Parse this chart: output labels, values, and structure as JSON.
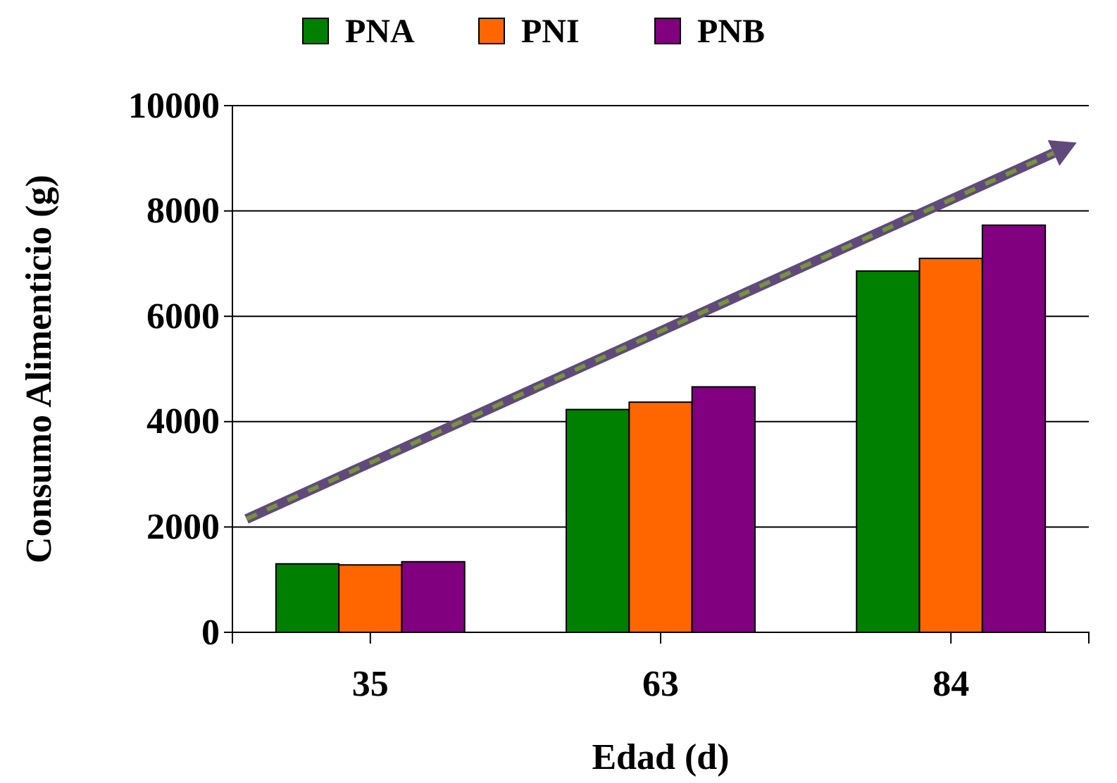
{
  "chart_data": {
    "type": "bar",
    "xlabel": "Edad (d)",
    "ylabel": "Consumo Alimenticio (g)",
    "categories": [
      "35",
      "63",
      "84"
    ],
    "series": [
      {
        "name": "PNA",
        "color": "#008000",
        "values": [
          1300,
          4230,
          6860
        ]
      },
      {
        "name": "PNI",
        "color": "#ff6600",
        "values": [
          1280,
          4370,
          7100
        ]
      },
      {
        "name": "PNB",
        "color": "#800080",
        "values": [
          1340,
          4660,
          7730
        ]
      }
    ],
    "ylim": [
      0,
      10000
    ],
    "yticks": [
      0,
      2000,
      4000,
      6000,
      8000,
      10000
    ],
    "grid": "y",
    "legend": "top"
  }
}
